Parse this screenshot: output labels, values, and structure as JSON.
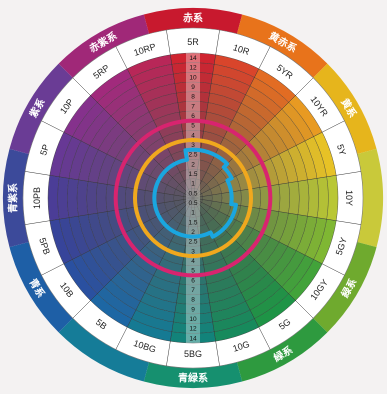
{
  "outer_ring": [
    {
      "label": "赤系",
      "color": "#c8192e",
      "start": -15,
      "end": 15
    },
    {
      "label": "黄赤系",
      "color": "#e8731b",
      "start": 15,
      "end": 45
    },
    {
      "label": "黄系",
      "color": "#e6b51c",
      "start": 45,
      "end": 75
    },
    {
      "label": "",
      "color": "#c9c93a",
      "start": 75,
      "end": 105
    },
    {
      "label": "緑系",
      "color": "#6faa2e",
      "start": 105,
      "end": 135
    },
    {
      "label": "緑系",
      "color": "#2e9a3f",
      "start": 135,
      "end": 165
    },
    {
      "label": "青緑系",
      "color": "#16906f",
      "start": 165,
      "end": 195
    },
    {
      "label": "",
      "color": "#157c98",
      "start": 195,
      "end": 225
    },
    {
      "label": "青系",
      "color": "#1e5fa6",
      "start": 225,
      "end": 255
    },
    {
      "label": "青紫系",
      "color": "#3c4a9a",
      "start": 255,
      "end": 285
    },
    {
      "label": "紫系",
      "color": "#6a3c95",
      "start": 285,
      "end": 315
    },
    {
      "label": "赤紫系",
      "color": "#a02878",
      "start": 315,
      "end": 345
    }
  ],
  "hues": [
    {
      "name": "5R",
      "color": "#cf2430"
    },
    {
      "name": "10R",
      "color": "#d9452b"
    },
    {
      "name": "5YR",
      "color": "#e26c23"
    },
    {
      "name": "10YR",
      "color": "#e89a22"
    },
    {
      "name": "5Y",
      "color": "#e7c226"
    },
    {
      "name": "10Y",
      "color": "#b9c734"
    },
    {
      "name": "5GY",
      "color": "#7fb733"
    },
    {
      "name": "10GY",
      "color": "#42a33a"
    },
    {
      "name": "5G",
      "color": "#1e9446"
    },
    {
      "name": "10G",
      "color": "#178a5c"
    },
    {
      "name": "5BG",
      "color": "#12837a"
    },
    {
      "name": "10BG",
      "color": "#157a93"
    },
    {
      "name": "5B",
      "color": "#1d67a4"
    },
    {
      "name": "10B",
      "color": "#2a50a0"
    },
    {
      "name": "5PB",
      "color": "#37449a"
    },
    {
      "name": "10PB",
      "color": "#4b3d97"
    },
    {
      "name": "5P",
      "color": "#673895"
    },
    {
      "name": "10P",
      "color": "#85318c"
    },
    {
      "name": "5RP",
      "color": "#a12a7c"
    },
    {
      "name": "10RP",
      "color": "#b82758"
    }
  ],
  "chroma_steps": [
    "0.5",
    "1",
    "1.5",
    "2",
    "2.5",
    "3",
    "4",
    "5",
    "6",
    "7",
    "8",
    "9",
    "10",
    "12",
    "14"
  ],
  "boundaries": [
    {
      "name": "cyan-line",
      "color": "#1aa6df",
      "radius_steps": [
        5.0,
        5.0,
        5.0,
        4.5,
        4.0,
        4.0,
        4.5,
        4.5,
        4.5,
        4.0,
        4.0,
        4.0,
        4.0,
        4.0,
        4.0,
        4.0,
        4.0,
        4.0,
        4.0,
        4.0
      ]
    },
    {
      "name": "orange-line",
      "color": "#f0a81e",
      "radius_steps": [
        6.0,
        6.0,
        6.0,
        6.0,
        6.0,
        6.0,
        6.0,
        6.0,
        6.0,
        6.0,
        6.0,
        6.0,
        6.0,
        6.0,
        6.0,
        6.0,
        6.0,
        6.0,
        6.0,
        6.0
      ]
    },
    {
      "name": "magenta-line",
      "color": "#d8246f",
      "radius_steps": [
        8.0,
        8.0,
        8.0,
        8.0,
        8.0,
        8.0,
        8.0,
        8.0,
        8.0,
        8.0,
        8.0,
        8.0,
        8.0,
        8.0,
        8.0,
        8.0,
        8.0,
        8.0,
        8.0,
        8.0
      ]
    }
  ]
}
